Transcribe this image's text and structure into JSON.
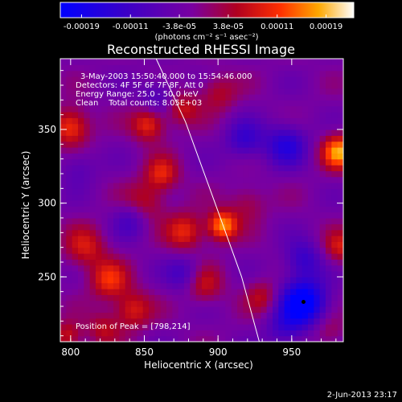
{
  "chart_data": {
    "type": "heatmap",
    "title": "Reconstructed RHESSI Image",
    "xlabel": "Heliocentric X (arcsec)",
    "ylabel": "Heliocentric Y (arcsec)",
    "xlim": [
      793,
      985
    ],
    "ylim": [
      206,
      398
    ],
    "x_ticks": [
      800,
      850,
      900,
      950
    ],
    "y_ticks": [
      250,
      300,
      350
    ],
    "colorbar": {
      "ticks": [
        "-0.00019",
        "-0.00011",
        "-3.8e-05",
        "3.8e-05",
        "0.00011",
        "0.00019"
      ],
      "unit_label": "(photons cm⁻² s⁻¹ asec⁻²)",
      "range": [
        -0.00019,
        0.00019
      ]
    },
    "annotations": [
      "3-May-2003 15:50:40.000 to 15:54:46.000",
      "Detectors: 4F 5F 6F 7F 8F, Att 0",
      "Energy Range: 25.0 - 50.0 keV",
      "Clean    Total counts: 8.05E+03"
    ],
    "peak_text": "Position of Peak = [798,214]",
    "limb_curve": [
      [
        858,
        398
      ],
      [
        878,
        355
      ],
      [
        898,
        300
      ],
      [
        916,
        250
      ],
      [
        928,
        206
      ]
    ],
    "field": [
      {
        "x": 958,
        "y": 233,
        "amp": -1.0,
        "s": 11
      },
      {
        "x": 958,
        "y": 262,
        "amp": -0.45,
        "s": 9
      },
      {
        "x": 946,
        "y": 340,
        "amp": -0.55,
        "s": 10
      },
      {
        "x": 918,
        "y": 343,
        "amp": -0.45,
        "s": 9
      },
      {
        "x": 842,
        "y": 290,
        "amp": -0.4,
        "s": 9
      },
      {
        "x": 878,
        "y": 252,
        "amp": -0.4,
        "s": 9
      },
      {
        "x": 860,
        "y": 372,
        "amp": -0.35,
        "s": 9
      },
      {
        "x": 805,
        "y": 325,
        "amp": -0.25,
        "s": 9
      },
      {
        "x": 945,
        "y": 215,
        "amp": -0.35,
        "s": 9
      },
      {
        "x": 800,
        "y": 352,
        "amp": 0.65,
        "s": 9
      },
      {
        "x": 810,
        "y": 270,
        "amp": 0.45,
        "s": 10
      },
      {
        "x": 826,
        "y": 248,
        "amp": 0.55,
        "s": 9
      },
      {
        "x": 842,
        "y": 228,
        "amp": 0.5,
        "s": 9
      },
      {
        "x": 850,
        "y": 300,
        "amp": 0.45,
        "s": 10
      },
      {
        "x": 862,
        "y": 320,
        "amp": 0.5,
        "s": 8
      },
      {
        "x": 853,
        "y": 354,
        "amp": 0.6,
        "s": 8
      },
      {
        "x": 875,
        "y": 365,
        "amp": 0.45,
        "s": 8
      },
      {
        "x": 878,
        "y": 281,
        "amp": 0.55,
        "s": 9
      },
      {
        "x": 903,
        "y": 285,
        "amp": 0.85,
        "s": 7
      },
      {
        "x": 890,
        "y": 245,
        "amp": 0.45,
        "s": 9
      },
      {
        "x": 900,
        "y": 375,
        "amp": 0.35,
        "s": 9
      },
      {
        "x": 920,
        "y": 300,
        "amp": 0.3,
        "s": 9
      },
      {
        "x": 930,
        "y": 237,
        "amp": 0.35,
        "s": 8
      },
      {
        "x": 982,
        "y": 335,
        "amp": 0.85,
        "s": 8
      },
      {
        "x": 983,
        "y": 270,
        "amp": 0.45,
        "s": 8
      },
      {
        "x": 975,
        "y": 213,
        "amp": 0.25,
        "s": 8
      },
      {
        "x": 822,
        "y": 215,
        "amp": 0.35,
        "s": 8
      },
      {
        "x": 798,
        "y": 210,
        "amp": 0.45,
        "s": 7
      }
    ]
  },
  "footer": {
    "timestamp": "2-Jun-2013 23:17"
  }
}
